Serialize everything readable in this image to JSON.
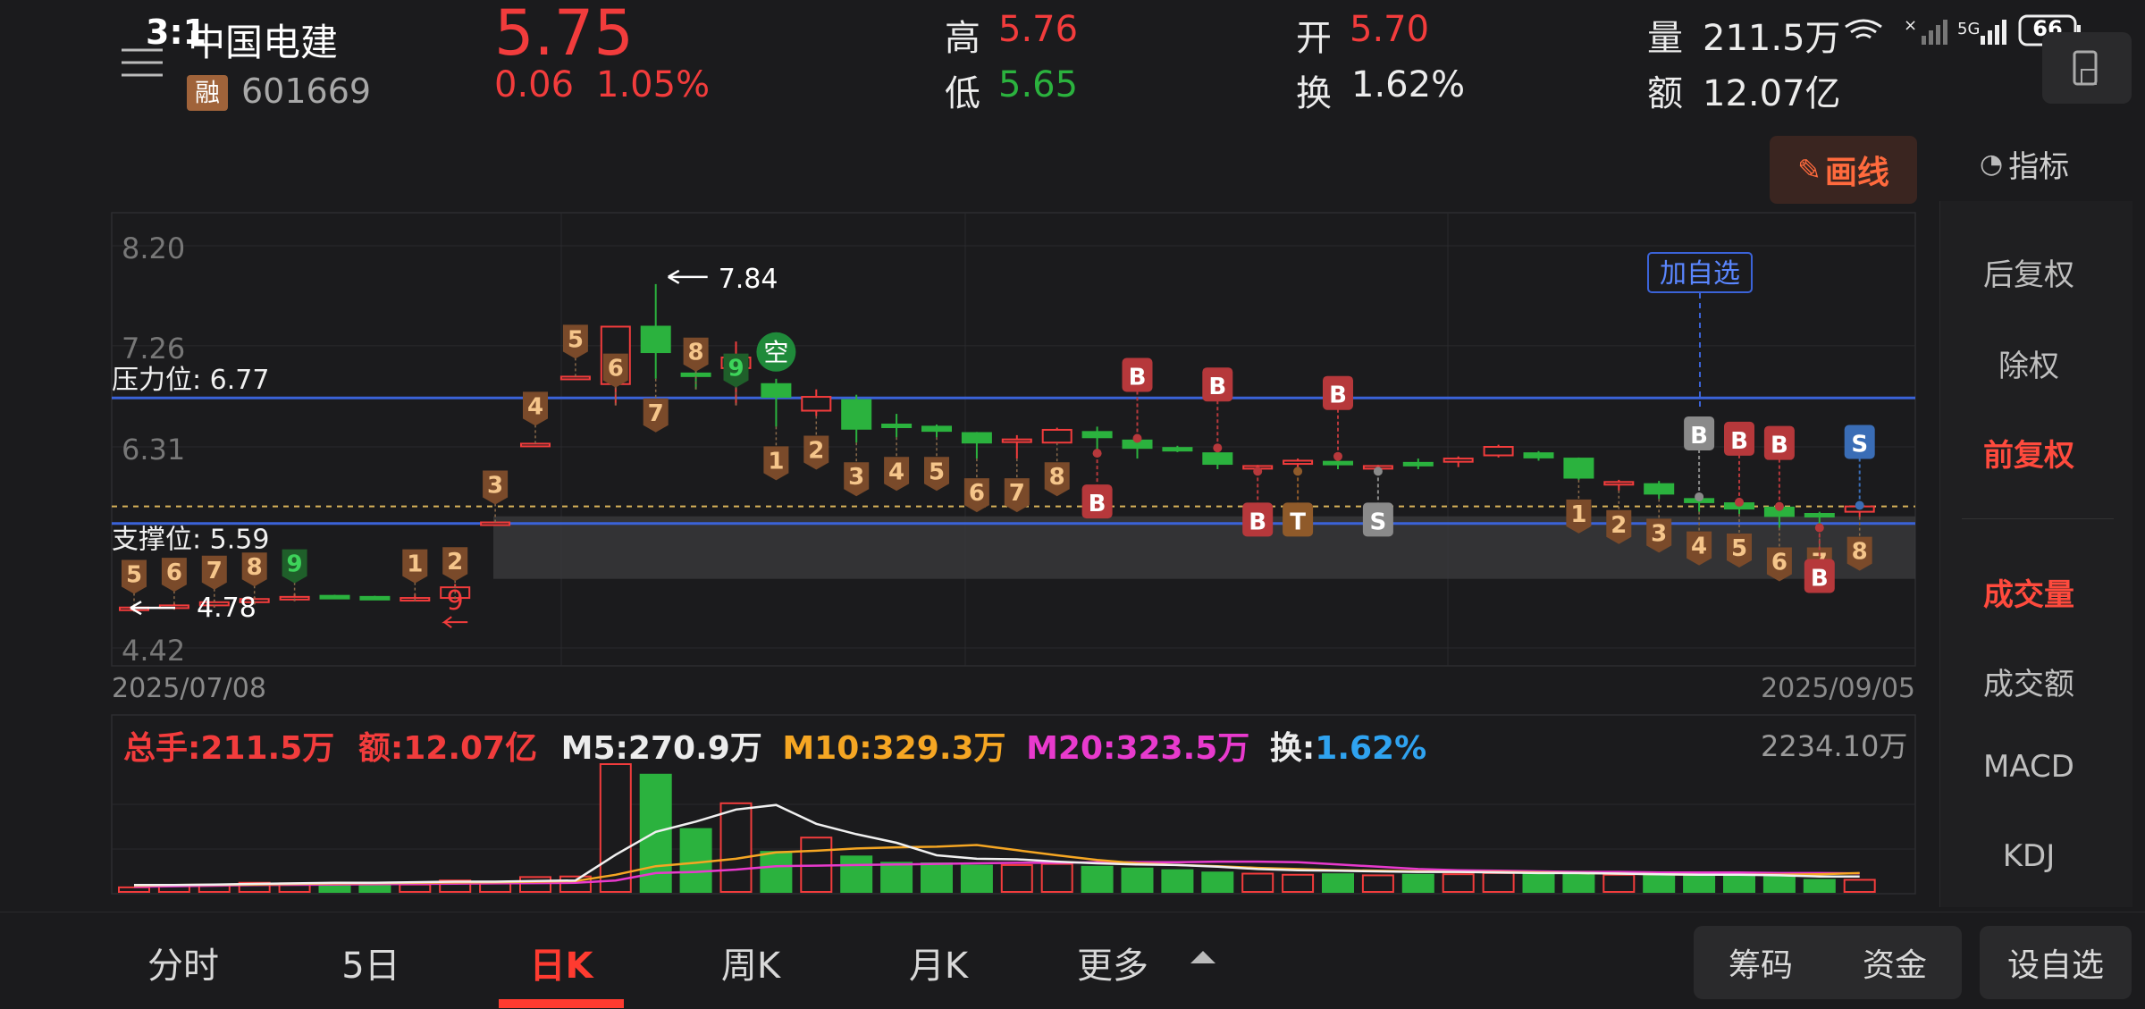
{
  "status_bar": {
    "time": "3:1",
    "network": "5G",
    "battery": "66"
  },
  "stock": {
    "name": "中国电建",
    "code": "601669",
    "margin_badge": "融",
    "price": "5.75",
    "change": "0.06",
    "change_pct": "1.05%",
    "high_label": "高",
    "high": "5.76",
    "low_label": "低",
    "low": "5.65",
    "open_label": "开",
    "open": "5.70",
    "turnover_label": "换",
    "turnover": "1.62%",
    "volume_label": "量",
    "volume": "211.5万",
    "amount_label": "额",
    "amount": "12.07亿"
  },
  "toolbar": {
    "draw_label": "画线",
    "indicator_label": "指标",
    "watch_tag": "加自选"
  },
  "chart_data": {
    "type": "candlestick",
    "start_date": "2025/07/08",
    "end_date": "2025/09/05",
    "y_ticks": [
      "8.20",
      "7.26",
      "6.31",
      "4.42"
    ],
    "resistance_label": "压力位: 6.77",
    "support_label": "支撑位: 5.59",
    "resistance": 6.77,
    "support": 5.59,
    "max_label": "7.84",
    "min_label": "4.78",
    "min_marker": "9",
    "empty_marker": "空",
    "candles": [
      {
        "o": 4.78,
        "c": 4.8,
        "h": 4.8,
        "l": 4.76
      },
      {
        "o": 4.8,
        "c": 4.82,
        "h": 4.84,
        "l": 4.78
      },
      {
        "o": 4.82,
        "c": 4.85,
        "h": 4.87,
        "l": 4.8
      },
      {
        "o": 4.85,
        "c": 4.88,
        "h": 4.9,
        "l": 4.83
      },
      {
        "o": 4.88,
        "c": 4.9,
        "h": 4.93,
        "l": 4.86
      },
      {
        "o": 4.91,
        "c": 4.9,
        "h": 4.92,
        "l": 4.89
      },
      {
        "o": 4.9,
        "c": 4.88,
        "h": 4.91,
        "l": 4.87
      },
      {
        "o": 4.87,
        "c": 4.89,
        "h": 4.93,
        "l": 4.86
      },
      {
        "o": 4.89,
        "c": 4.99,
        "h": 5.02,
        "l": 4.88
      },
      {
        "o": 5.6,
        "c": 5.6,
        "h": 5.6,
        "l": 5.6
      },
      {
        "o": 6.34,
        "c": 6.34,
        "h": 6.34,
        "l": 6.34
      },
      {
        "o": 6.97,
        "c": 6.97,
        "h": 6.97,
        "l": 6.97
      },
      {
        "o": 6.9,
        "c": 7.44,
        "h": 7.44,
        "l": 6.7
      },
      {
        "o": 7.44,
        "c": 7.2,
        "h": 7.84,
        "l": 6.95
      },
      {
        "o": 7.0,
        "c": 6.98,
        "h": 7.15,
        "l": 6.85
      },
      {
        "o": 7.05,
        "c": 7.15,
        "h": 7.3,
        "l": 6.7
      },
      {
        "o": 6.9,
        "c": 6.78,
        "h": 6.95,
        "l": 6.5
      },
      {
        "o": 6.65,
        "c": 6.78,
        "h": 6.85,
        "l": 6.6
      },
      {
        "o": 6.75,
        "c": 6.48,
        "h": 6.8,
        "l": 6.35
      },
      {
        "o": 6.52,
        "c": 6.5,
        "h": 6.62,
        "l": 6.4
      },
      {
        "o": 6.5,
        "c": 6.46,
        "h": 6.52,
        "l": 6.4
      },
      {
        "o": 6.44,
        "c": 6.35,
        "h": 6.45,
        "l": 6.2
      },
      {
        "o": 6.37,
        "c": 6.38,
        "h": 6.42,
        "l": 6.2
      },
      {
        "o": 6.35,
        "c": 6.47,
        "h": 6.49,
        "l": 6.35
      },
      {
        "o": 6.45,
        "c": 6.4,
        "h": 6.5,
        "l": 6.25
      },
      {
        "o": 6.37,
        "c": 6.3,
        "h": 6.39,
        "l": 6.2
      },
      {
        "o": 6.3,
        "c": 6.29,
        "h": 6.32,
        "l": 6.26
      },
      {
        "o": 6.25,
        "c": 6.15,
        "h": 6.3,
        "l": 6.1
      },
      {
        "o": 6.12,
        "c": 6.13,
        "h": 6.14,
        "l": 6.08
      },
      {
        "o": 6.15,
        "c": 6.18,
        "h": 6.2,
        "l": 6.08
      },
      {
        "o": 6.17,
        "c": 6.15,
        "h": 6.22,
        "l": 6.1
      },
      {
        "o": 6.12,
        "c": 6.13,
        "h": 6.14,
        "l": 6.08
      },
      {
        "o": 6.16,
        "c": 6.14,
        "h": 6.2,
        "l": 6.1
      },
      {
        "o": 6.17,
        "c": 6.2,
        "h": 6.22,
        "l": 6.12
      },
      {
        "o": 6.23,
        "c": 6.31,
        "h": 6.33,
        "l": 6.21
      },
      {
        "o": 6.25,
        "c": 6.21,
        "h": 6.27,
        "l": 6.18
      },
      {
        "o": 6.2,
        "c": 6.02,
        "h": 6.21,
        "l": 6.0
      },
      {
        "o": 5.98,
        "c": 5.98,
        "h": 6.0,
        "l": 5.9
      },
      {
        "o": 5.96,
        "c": 5.87,
        "h": 5.99,
        "l": 5.82
      },
      {
        "o": 5.82,
        "c": 5.79,
        "h": 5.84,
        "l": 5.7
      },
      {
        "o": 5.78,
        "c": 5.73,
        "h": 5.79,
        "l": 5.68
      },
      {
        "o": 5.74,
        "c": 5.66,
        "h": 5.75,
        "l": 5.55
      },
      {
        "o": 5.68,
        "c": 5.67,
        "h": 5.7,
        "l": 5.55
      },
      {
        "o": 5.7,
        "c": 5.75,
        "h": 5.76,
        "l": 5.65
      }
    ],
    "markers": [
      {
        "i": 0,
        "t": "5",
        "kind": "td-low"
      },
      {
        "i": 1,
        "t": "6",
        "kind": "td-low"
      },
      {
        "i": 2,
        "t": "7",
        "kind": "td-low"
      },
      {
        "i": 3,
        "t": "8",
        "kind": "td-low"
      },
      {
        "i": 4,
        "t": "9",
        "kind": "td-low-green"
      },
      {
        "i": 7,
        "t": "1",
        "kind": "td-low"
      },
      {
        "i": 8,
        "t": "2",
        "kind": "td-low"
      },
      {
        "i": 9,
        "t": "3",
        "kind": "td-low"
      },
      {
        "i": 10,
        "t": "4",
        "kind": "td-low"
      },
      {
        "i": 11,
        "t": "5",
        "kind": "td-low"
      },
      {
        "i": 12,
        "t": "6",
        "kind": "td-low"
      },
      {
        "i": 13,
        "t": "7",
        "kind": "td-below"
      },
      {
        "i": 14,
        "t": "8",
        "kind": "td-low"
      },
      {
        "i": 15,
        "t": "9",
        "kind": "td-low-green"
      },
      {
        "i": 16,
        "t": "1",
        "kind": "td-below"
      },
      {
        "i": 17,
        "t": "2",
        "kind": "td-below"
      },
      {
        "i": 18,
        "t": "3",
        "kind": "td-below"
      },
      {
        "i": 19,
        "t": "4",
        "kind": "td-below"
      },
      {
        "i": 20,
        "t": "5",
        "kind": "td-below"
      },
      {
        "i": 21,
        "t": "6",
        "kind": "td-below"
      },
      {
        "i": 22,
        "t": "7",
        "kind": "td-below"
      },
      {
        "i": 23,
        "t": "8",
        "kind": "td-below"
      },
      {
        "i": 36,
        "t": "1",
        "kind": "td-below"
      },
      {
        "i": 37,
        "t": "2",
        "kind": "td-below"
      },
      {
        "i": 38,
        "t": "3",
        "kind": "td-below"
      },
      {
        "i": 39,
        "t": "4",
        "kind": "td-below"
      },
      {
        "i": 40,
        "t": "5",
        "kind": "td-below"
      },
      {
        "i": 41,
        "t": "6",
        "kind": "td-below"
      },
      {
        "i": 42,
        "t": "7",
        "kind": "td-below"
      },
      {
        "i": 43,
        "t": "8",
        "kind": "td-below"
      }
    ],
    "signals": [
      {
        "i": 24,
        "t": "B",
        "color": "#b6383b",
        "pos": "below"
      },
      {
        "i": 25,
        "t": "B",
        "color": "#b6383b",
        "pos": "above"
      },
      {
        "i": 27,
        "t": "B",
        "color": "#b6383b",
        "pos": "above"
      },
      {
        "i": 28,
        "t": "B",
        "color": "#b6383b",
        "pos": "below"
      },
      {
        "i": 29,
        "t": "T",
        "color": "#8f5a2a",
        "pos": "below"
      },
      {
        "i": 30,
        "t": "B",
        "color": "#b6383b",
        "pos": "above"
      },
      {
        "i": 31,
        "t": "S",
        "color": "#8a8a8a",
        "pos": "below"
      },
      {
        "i": 39,
        "t": "B",
        "color": "#8a8a8a",
        "pos": "above"
      },
      {
        "i": 40,
        "t": "B",
        "color": "#b6383b",
        "pos": "above"
      },
      {
        "i": 41,
        "t": "B",
        "color": "#b6383b",
        "pos": "above"
      },
      {
        "i": 42,
        "t": "B",
        "color": "#b6383b",
        "pos": "below"
      },
      {
        "i": 43,
        "t": "S",
        "color": "#3a6db6",
        "pos": "above"
      }
    ],
    "volume_max": "2234.10万",
    "volumes": [
      80,
      110,
      120,
      160,
      150,
      150,
      140,
      130,
      200,
      180,
      260,
      270,
      2234,
      2050,
      1100,
      1550,
      700,
      950,
      620,
      510,
      500,
      460,
      470,
      490,
      440,
      410,
      380,
      340,
      320,
      300,
      310,
      290,
      300,
      310,
      330,
      320,
      330,
      300,
      310,
      300,
      280,
      260,
      210,
      211.5
    ],
    "ma5": [
      120,
      120,
      130,
      140,
      150,
      160,
      160,
      170,
      180,
      180,
      190,
      200,
      650,
      1050,
      1230,
      1440,
      1520,
      1190,
      1010,
      860,
      640,
      580,
      570,
      530,
      500,
      480,
      470,
      440,
      400,
      380,
      370,
      360,
      350,
      350,
      340,
      330,
      330,
      320,
      310,
      300,
      300,
      290,
      270,
      270.9
    ],
    "ma10": [
      110,
      120,
      125,
      130,
      140,
      150,
      155,
      160,
      165,
      170,
      180,
      190,
      300,
      450,
      510,
      580,
      690,
      720,
      760,
      780,
      790,
      820,
      730,
      640,
      560,
      500,
      470,
      450,
      420,
      400,
      380,
      370,
      360,
      350,
      350,
      340,
      330,
      320,
      310,
      300,
      300,
      300,
      310,
      329.3
    ],
    "ma20": [
      90,
      100,
      110,
      120,
      125,
      130,
      135,
      140,
      145,
      150,
      155,
      160,
      200,
      330,
      350,
      390,
      450,
      460,
      470,
      480,
      490,
      500,
      510,
      510,
      520,
      520,
      520,
      530,
      530,
      520,
      480,
      440,
      400,
      380,
      370,
      360,
      350,
      350,
      340,
      340,
      340,
      330,
      330,
      323.5
    ],
    "vol_legend": {
      "total": "总手:211.5万",
      "amount": "额:12.07亿",
      "m5": "M5:270.9万",
      "m10": "M10:329.3万",
      "m20": "M20:323.5万",
      "turn_label": "换:",
      "turn_value": "1.62%"
    }
  },
  "side_panel": [
    "后复权",
    "除权",
    "前复权",
    "成交量",
    "成交额",
    "MACD",
    "KDJ"
  ],
  "tabs": [
    "分时",
    "5日",
    "日K",
    "周K",
    "月K",
    "更多"
  ],
  "bottom_buttons": {
    "chips": "筹码",
    "funds": "资金",
    "add_watch": "设自选"
  }
}
